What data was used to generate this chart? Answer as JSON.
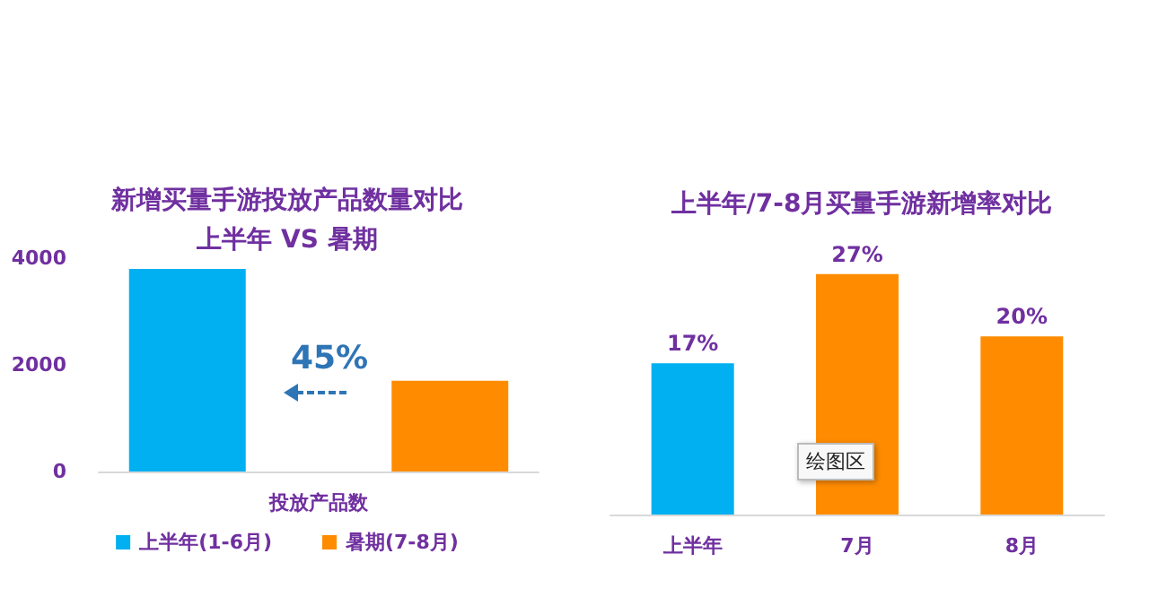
{
  "chart_data": [
    {
      "type": "bar",
      "title": "新增买量手游投放产品数量对比",
      "subtitle": "上半年 VS 暑期",
      "categories": [
        "投放产品数"
      ],
      "series": [
        {
          "name": "上半年(1-6月)",
          "color": "#00b0f0",
          "values": [
            3800
          ]
        },
        {
          "name": "暑期(7-8月)",
          "color": "#ff8c00",
          "values": [
            1700
          ]
        }
      ],
      "ylim": [
        0,
        4000
      ],
      "yticks": [
        0,
        2000,
        4000
      ],
      "grid": false,
      "legend": "bottom",
      "annotations": [
        "45%"
      ]
    },
    {
      "type": "bar",
      "title": "上半年/7-8月买量手游新增率对比",
      "categories": [
        "上半年",
        "7月",
        "8月"
      ],
      "values": [
        17,
        27,
        20
      ],
      "colors": [
        "#00b0f0",
        "#ff8c00",
        "#ff8c00"
      ],
      "value_labels": [
        "17%",
        "27%",
        "20%"
      ],
      "tick_labels": "x",
      "grid": false,
      "annotations": [
        "绘图区"
      ]
    }
  ]
}
